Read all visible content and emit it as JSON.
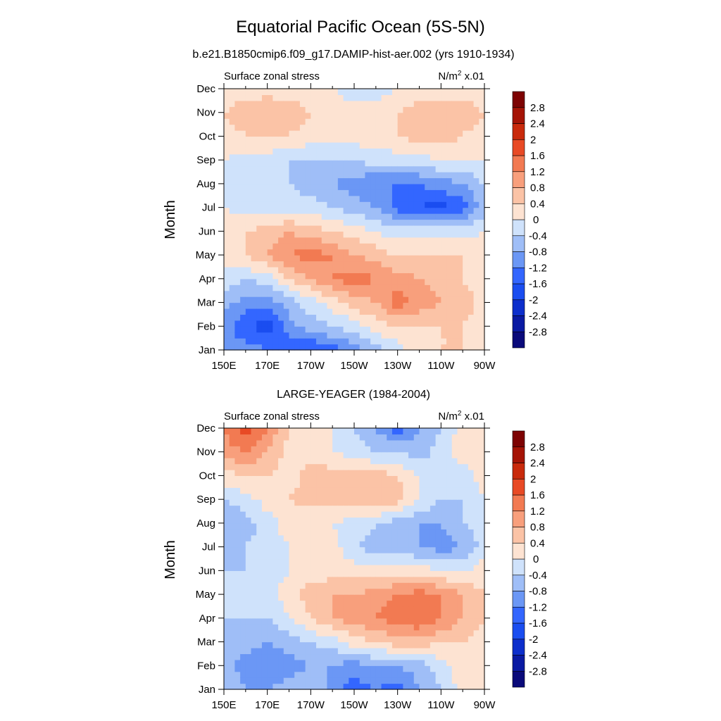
{
  "figure": {
    "title": "Equatorial Pacific Ocean (5S-5N)",
    "unit_base": "N/m",
    "unit_exp": "2",
    "unit_suffix": " x.01"
  },
  "chart_data": [
    {
      "type": "heatmap",
      "title": "b.e21.B1850cmip6.f09_g17.DAMIP-hist-aer.002 (yrs 1910-1934)",
      "panel_label": "Surface zonal stress",
      "ylabel": "Month",
      "xlabel": "",
      "x_ticks": [
        "150E",
        "170E",
        "170W",
        "150W",
        "130W",
        "110W",
        "90W"
      ],
      "x": [
        150,
        160,
        170,
        180,
        190,
        200,
        210,
        220,
        230,
        240,
        250,
        260,
        270
      ],
      "y": [
        "Jan",
        "Feb",
        "Mar",
        "Apr",
        "May",
        "Jun",
        "Jul",
        "Aug",
        "Sep",
        "Oct",
        "Nov",
        "Dec"
      ],
      "z": [
        [
          -0.8,
          -1.0,
          -1.2,
          -1.4,
          -1.6,
          -1.4,
          -1.0,
          -0.6,
          -0.2,
          0.2,
          0.4,
          0.4,
          0.2
        ],
        [
          -1.0,
          -1.6,
          -1.8,
          -1.0,
          -0.6,
          -0.4,
          -0.2,
          0.2,
          0.4,
          0.4,
          0.4,
          0.4,
          0.2
        ],
        [
          -0.6,
          -1.0,
          -1.0,
          -0.6,
          -0.2,
          0.2,
          0.6,
          0.8,
          1.4,
          1.0,
          0.8,
          0.6,
          0.2
        ],
        [
          -0.2,
          -0.4,
          -0.2,
          0.4,
          0.8,
          1.2,
          1.4,
          1.2,
          1.0,
          0.8,
          0.6,
          0.4,
          0.2
        ],
        [
          0.2,
          0.4,
          0.8,
          1.2,
          1.4,
          1.2,
          0.8,
          0.6,
          0.4,
          0.4,
          0.4,
          0.4,
          0.2
        ],
        [
          0.2,
          0.4,
          0.6,
          0.8,
          0.6,
          0.4,
          0.2,
          0.0,
          -0.2,
          -0.2,
          -0.2,
          -0.2,
          0.0
        ],
        [
          0.0,
          -0.2,
          -0.2,
          -0.2,
          -0.2,
          -0.4,
          -0.6,
          -0.8,
          -1.4,
          -1.6,
          -1.8,
          -1.4,
          -0.6
        ],
        [
          -0.2,
          -0.4,
          -0.4,
          -0.4,
          -0.6,
          -0.8,
          -1.0,
          -1.2,
          -1.2,
          -1.2,
          -1.0,
          -0.8,
          -0.4
        ],
        [
          0.0,
          -0.2,
          -0.2,
          -0.4,
          -0.4,
          -0.4,
          -0.4,
          -0.2,
          -0.2,
          -0.2,
          0.0,
          0.0,
          0.0
        ],
        [
          0.2,
          0.4,
          0.4,
          0.4,
          0.2,
          0.2,
          0.2,
          0.2,
          0.4,
          0.6,
          0.6,
          0.4,
          0.2
        ],
        [
          0.4,
          0.6,
          0.8,
          0.6,
          0.4,
          0.2,
          0.2,
          0.2,
          0.4,
          0.6,
          0.6,
          0.6,
          0.4
        ],
        [
          0.2,
          0.2,
          0.2,
          0.2,
          0.2,
          0.0,
          -0.2,
          -0.2,
          0.0,
          0.2,
          0.2,
          0.2,
          0.2
        ]
      ],
      "levels": [
        -2.8,
        -2.4,
        -2.0,
        -1.6,
        -1.2,
        -0.8,
        -0.4,
        0,
        0.4,
        0.8,
        1.2,
        1.6,
        2.0,
        2.4,
        2.8
      ]
    },
    {
      "type": "heatmap",
      "title": "LARGE-YEAGER (1984-2004)",
      "panel_label": "Surface zonal stress",
      "ylabel": "Month",
      "xlabel": "",
      "x_ticks": [
        "150E",
        "170E",
        "170W",
        "150W",
        "130W",
        "110W",
        "90W"
      ],
      "x": [
        150,
        160,
        170,
        180,
        190,
        200,
        210,
        220,
        230,
        240,
        250,
        260,
        270
      ],
      "y": [
        "Jan",
        "Feb",
        "Mar",
        "Apr",
        "May",
        "Jun",
        "Jul",
        "Aug",
        "Sep",
        "Oct",
        "Nov",
        "Dec"
      ],
      "z": [
        [
          -0.4,
          -0.8,
          -0.8,
          -0.6,
          -0.4,
          -1.0,
          -1.4,
          -1.2,
          -1.4,
          -0.8,
          -0.4,
          0.2,
          0.2
        ],
        [
          -0.6,
          -1.0,
          -1.2,
          -1.0,
          -0.8,
          -0.8,
          -1.0,
          -0.8,
          -0.8,
          -0.6,
          -0.2,
          0.2,
          0.2
        ],
        [
          -0.4,
          -0.6,
          -0.8,
          -0.6,
          -0.4,
          -0.2,
          0.2,
          0.4,
          0.6,
          0.6,
          0.4,
          0.4,
          0.2
        ],
        [
          -0.4,
          -0.4,
          -0.4,
          0.0,
          0.4,
          0.8,
          1.0,
          1.2,
          1.4,
          1.6,
          1.2,
          0.8,
          0.4
        ],
        [
          -0.4,
          -0.4,
          -0.2,
          0.2,
          0.6,
          0.8,
          0.8,
          1.0,
          1.2,
          1.4,
          1.2,
          0.8,
          0.4
        ],
        [
          -0.4,
          -0.4,
          -0.2,
          0.0,
          0.2,
          0.2,
          0.2,
          0.2,
          0.2,
          0.2,
          0.0,
          0.0,
          0.2
        ],
        [
          -0.6,
          -0.4,
          -0.2,
          0.0,
          0.0,
          0.2,
          -0.4,
          -0.6,
          -0.6,
          -0.8,
          -1.0,
          -0.8,
          -0.2
        ],
        [
          -0.8,
          -0.6,
          -0.2,
          0.2,
          0.0,
          0.0,
          -0.2,
          -0.4,
          -0.6,
          -0.8,
          -0.8,
          -0.4,
          -0.2
        ],
        [
          -0.4,
          -0.2,
          0.2,
          0.4,
          0.6,
          0.6,
          0.6,
          0.8,
          0.6,
          0.0,
          -0.4,
          -0.4,
          0.0
        ],
        [
          0.2,
          0.4,
          0.4,
          0.2,
          0.6,
          0.6,
          0.6,
          0.6,
          0.4,
          0.0,
          -0.2,
          -0.2,
          0.2
        ],
        [
          1.0,
          1.2,
          0.8,
          0.2,
          0.2,
          0.0,
          -0.2,
          -0.4,
          -0.4,
          -0.6,
          -0.2,
          0.2,
          0.2
        ],
        [
          1.2,
          1.8,
          1.2,
          0.4,
          0.2,
          0.0,
          -0.4,
          -0.8,
          -1.4,
          -0.8,
          -0.4,
          0.2,
          0.2
        ]
      ],
      "levels": [
        -2.8,
        -2.4,
        -2.0,
        -1.6,
        -1.2,
        -0.8,
        -0.4,
        0,
        0.4,
        0.8,
        1.2,
        1.6,
        2.0,
        2.4,
        2.8
      ]
    }
  ],
  "colormap": [
    "#0a0a7a",
    "#0a1aa3",
    "#0d2fcc",
    "#1a4df0",
    "#3366ff",
    "#6b97f5",
    "#9fbef7",
    "#cfe2fb",
    "#fde3d2",
    "#fbc3a6",
    "#f89f7c",
    "#f27a52",
    "#e84a25",
    "#c92a0c",
    "#a51406",
    "#7d0303"
  ]
}
